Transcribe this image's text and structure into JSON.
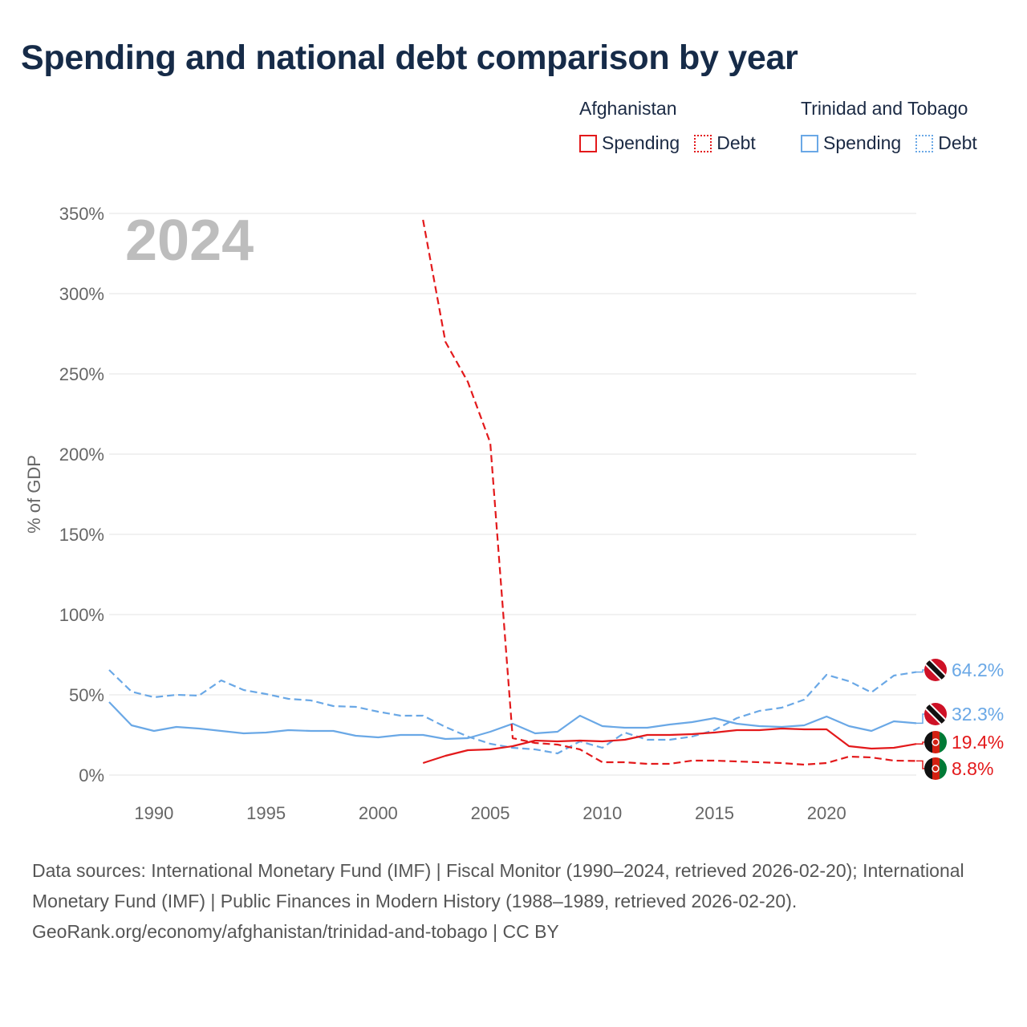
{
  "title": "Spending and national debt comparison by year",
  "legend": {
    "groups": [
      {
        "country": "Afghanistan",
        "items": [
          {
            "label": "Spending"
          },
          {
            "label": "Debt"
          }
        ]
      },
      {
        "country": "Trinidad and Tobago",
        "items": [
          {
            "label": "Spending"
          },
          {
            "label": "Debt"
          }
        ]
      }
    ]
  },
  "year_label": "2024",
  "colors": {
    "afghanistan": "#e3191b",
    "trinidad": "#6aa8e6",
    "grid": "#e3e3e3",
    "axis_text": "#666666",
    "year": "#bdbdbd"
  },
  "footer": {
    "sources": "Data sources: International Monetary Fund (IMF) | Fiscal Monitor (1990–2024, retrieved 2026-02-20); International Monetary Fund (IMF) | Public Finances in Modern History (1988–1989, retrieved 2026-02-20).",
    "credit": "GeoRank.org/economy/afghanistan/trinidad-and-tobago | CC BY"
  },
  "chart_data": {
    "type": "line",
    "title": "Spending and national debt comparison by year",
    "xlabel": "",
    "ylabel": "% of GDP",
    "xlim": [
      1988,
      2024
    ],
    "ylim": [
      0,
      350
    ],
    "xticks": [
      1990,
      1995,
      2000,
      2005,
      2010,
      2015,
      2020
    ],
    "yticks": [
      0,
      50,
      100,
      150,
      200,
      250,
      300,
      350
    ],
    "ytick_labels": [
      "0%",
      "50%",
      "100%",
      "150%",
      "200%",
      "250%",
      "300%",
      "350%"
    ],
    "grid": true,
    "series": [
      {
        "name": "Trinidad and Tobago Debt",
        "country": "trinidad",
        "style": "dashed",
        "end_label": "64.2%",
        "x": [
          1988,
          1989,
          1990,
          1991,
          1992,
          1993,
          1994,
          1995,
          1996,
          1997,
          1998,
          1999,
          2000,
          2001,
          2002,
          2003,
          2004,
          2005,
          2006,
          2007,
          2008,
          2009,
          2010,
          2011,
          2012,
          2013,
          2014,
          2015,
          2016,
          2017,
          2018,
          2019,
          2020,
          2021,
          2022,
          2023,
          2024
        ],
        "y": [
          65.5,
          52,
          48.5,
          50,
          49.5,
          59,
          53,
          50.5,
          47.5,
          46.5,
          43,
          42.5,
          39.5,
          37,
          37,
          30,
          24,
          19.5,
          17,
          16,
          13.5,
          21,
          17,
          26.5,
          22,
          22,
          24,
          28,
          35.5,
          40,
          42,
          47,
          62.5,
          58.5,
          51.5,
          62,
          64.2
        ]
      },
      {
        "name": "Trinidad and Tobago Spending",
        "country": "trinidad",
        "style": "solid",
        "end_label": "32.3%",
        "x": [
          1988,
          1989,
          1990,
          1991,
          1992,
          1993,
          1994,
          1995,
          1996,
          1997,
          1998,
          1999,
          2000,
          2001,
          2002,
          2003,
          2004,
          2005,
          2006,
          2007,
          2008,
          2009,
          2010,
          2011,
          2012,
          2013,
          2014,
          2015,
          2016,
          2017,
          2018,
          2019,
          2020,
          2021,
          2022,
          2023,
          2024
        ],
        "y": [
          45.5,
          31,
          27.5,
          30,
          29,
          27.5,
          26,
          26.5,
          28,
          27.5,
          27.5,
          24.5,
          23.5,
          25,
          25,
          22.5,
          23,
          27,
          32,
          26,
          27,
          37,
          30.5,
          29.5,
          29.5,
          31.5,
          33,
          35.5,
          32,
          30.5,
          30,
          31,
          36.5,
          30.5,
          27.5,
          33.5,
          32.3
        ]
      },
      {
        "name": "Afghanistan Spending",
        "country": "afghanistan",
        "style": "solid",
        "end_label": "19.4%",
        "x": [
          2002,
          2003,
          2004,
          2005,
          2006,
          2007,
          2008,
          2009,
          2010,
          2011,
          2012,
          2013,
          2014,
          2015,
          2016,
          2017,
          2018,
          2019,
          2020,
          2021,
          2022,
          2023,
          2024
        ],
        "y": [
          7.5,
          12,
          15.5,
          16,
          18,
          21.5,
          21,
          21.5,
          21,
          22,
          25,
          25,
          25.5,
          26.5,
          28,
          28,
          29,
          28.5,
          28.5,
          18,
          16.5,
          17,
          19.4
        ]
      },
      {
        "name": "Afghanistan Debt",
        "country": "afghanistan",
        "style": "dashed",
        "end_label": "8.8%",
        "x": [
          2002,
          2003,
          2004,
          2005,
          2006,
          2007,
          2008,
          2009,
          2010,
          2011,
          2012,
          2013,
          2014,
          2015,
          2016,
          2017,
          2018,
          2019,
          2020,
          2021,
          2022,
          2023,
          2024
        ],
        "y": [
          346,
          270,
          245,
          207,
          23,
          20,
          19,
          16,
          8,
          8,
          7,
          7,
          9,
          9,
          8.5,
          8,
          7.5,
          6.5,
          7.5,
          11.5,
          11,
          9,
          8.8
        ]
      }
    ]
  }
}
